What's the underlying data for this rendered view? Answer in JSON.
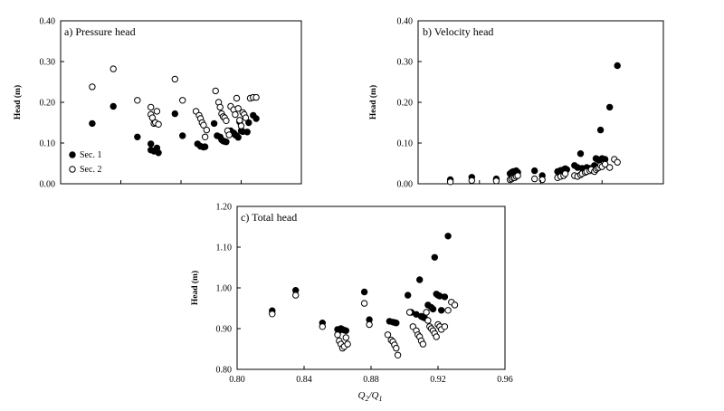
{
  "chart_data": [
    {
      "type": "scatter",
      "title": "a) Pressure head",
      "ylabel": "Head (m)",
      "xlabel": "",
      "xlim": [
        0.8,
        0.96
      ],
      "ylim": [
        0.0,
        0.4
      ],
      "yticks": [
        "0.00",
        "0.10",
        "0.20",
        "0.30",
        "0.40"
      ],
      "xticks": [],
      "legend_position": "lower-left",
      "series": [
        {
          "name": "Sec. 1",
          "marker": "filled",
          "points": [
            [
              0.821,
              0.148
            ],
            [
              0.835,
              0.19
            ],
            [
              0.851,
              0.115
            ],
            [
              0.86,
              0.098
            ],
            [
              0.86,
              0.083
            ],
            [
              0.862,
              0.08
            ],
            [
              0.863,
              0.082
            ],
            [
              0.864,
              0.088
            ],
            [
              0.865,
              0.076
            ],
            [
              0.876,
              0.172
            ],
            [
              0.881,
              0.118
            ],
            [
              0.891,
              0.098
            ],
            [
              0.893,
              0.092
            ],
            [
              0.895,
              0.09
            ],
            [
              0.896,
              0.091
            ],
            [
              0.902,
              0.148
            ],
            [
              0.904,
              0.118
            ],
            [
              0.906,
              0.115
            ],
            [
              0.907,
              0.108
            ],
            [
              0.908,
              0.105
            ],
            [
              0.909,
              0.104
            ],
            [
              0.91,
              0.103
            ],
            [
              0.913,
              0.13
            ],
            [
              0.915,
              0.125
            ],
            [
              0.916,
              0.12
            ],
            [
              0.917,
              0.118
            ],
            [
              0.918,
              0.114
            ],
            [
              0.919,
              0.152
            ],
            [
              0.92,
              0.13
            ],
            [
              0.921,
              0.128
            ],
            [
              0.924,
              0.127
            ],
            [
              0.925,
              0.15
            ],
            [
              0.928,
              0.168
            ],
            [
              0.93,
              0.16
            ]
          ]
        },
        {
          "name": "Sec. 2",
          "marker": "open",
          "points": [
            [
              0.821,
              0.238
            ],
            [
              0.835,
              0.282
            ],
            [
              0.851,
              0.205
            ],
            [
              0.86,
              0.188
            ],
            [
              0.86,
              0.17
            ],
            [
              0.861,
              0.162
            ],
            [
              0.862,
              0.148
            ],
            [
              0.863,
              0.15
            ],
            [
              0.864,
              0.178
            ],
            [
              0.865,
              0.146
            ],
            [
              0.876,
              0.257
            ],
            [
              0.881,
              0.205
            ],
            [
              0.89,
              0.178
            ],
            [
              0.892,
              0.168
            ],
            [
              0.893,
              0.16
            ],
            [
              0.894,
              0.15
            ],
            [
              0.895,
              0.144
            ],
            [
              0.896,
              0.115
            ],
            [
              0.897,
              0.132
            ],
            [
              0.903,
              0.228
            ],
            [
              0.905,
              0.2
            ],
            [
              0.906,
              0.188
            ],
            [
              0.907,
              0.172
            ],
            [
              0.908,
              0.165
            ],
            [
              0.909,
              0.162
            ],
            [
              0.91,
              0.155
            ],
            [
              0.911,
              0.13
            ],
            [
              0.912,
              0.12
            ],
            [
              0.913,
              0.19
            ],
            [
              0.915,
              0.182
            ],
            [
              0.916,
              0.17
            ],
            [
              0.917,
              0.21
            ],
            [
              0.918,
              0.185
            ],
            [
              0.919,
              0.156
            ],
            [
              0.92,
              0.142
            ],
            [
              0.921,
              0.175
            ],
            [
              0.922,
              0.17
            ],
            [
              0.923,
              0.162
            ],
            [
              0.926,
              0.21
            ],
            [
              0.928,
              0.212
            ],
            [
              0.93,
              0.212
            ]
          ]
        }
      ]
    },
    {
      "type": "scatter",
      "title": "b) Velocity head",
      "ylabel": "Head (m)",
      "xlabel": "",
      "xlim": [
        0.8,
        0.96
      ],
      "ylim": [
        0.0,
        0.4
      ],
      "yticks": [
        "0.00",
        "0.10",
        "0.20",
        "0.30",
        "0.40"
      ],
      "xticks": [],
      "series": [
        {
          "name": "Sec. 1",
          "marker": "filled",
          "points": [
            [
              0.821,
              0.01
            ],
            [
              0.835,
              0.016
            ],
            [
              0.851,
              0.012
            ],
            [
              0.86,
              0.025
            ],
            [
              0.861,
              0.028
            ],
            [
              0.862,
              0.03
            ],
            [
              0.863,
              0.03
            ],
            [
              0.864,
              0.032
            ],
            [
              0.865,
              0.028
            ],
            [
              0.876,
              0.032
            ],
            [
              0.881,
              0.02
            ],
            [
              0.891,
              0.03
            ],
            [
              0.893,
              0.033
            ],
            [
              0.895,
              0.035
            ],
            [
              0.896,
              0.037
            ],
            [
              0.897,
              0.035
            ],
            [
              0.902,
              0.045
            ],
            [
              0.904,
              0.04
            ],
            [
              0.906,
              0.074
            ],
            [
              0.907,
              0.038
            ],
            [
              0.909,
              0.036
            ],
            [
              0.91,
              0.04
            ],
            [
              0.912,
              0.038
            ],
            [
              0.913,
              0.036
            ],
            [
              0.915,
              0.045
            ],
            [
              0.916,
              0.062
            ],
            [
              0.917,
              0.06
            ],
            [
              0.918,
              0.058
            ],
            [
              0.919,
              0.132
            ],
            [
              0.92,
              0.062
            ],
            [
              0.922,
              0.06
            ],
            [
              0.925,
              0.188
            ],
            [
              0.93,
              0.29
            ]
          ]
        },
        {
          "name": "Sec. 2",
          "marker": "open",
          "points": [
            [
              0.821,
              0.005
            ],
            [
              0.835,
              0.008
            ],
            [
              0.851,
              0.007
            ],
            [
              0.86,
              0.01
            ],
            [
              0.861,
              0.012
            ],
            [
              0.862,
              0.015
            ],
            [
              0.863,
              0.015
            ],
            [
              0.864,
              0.018
            ],
            [
              0.865,
              0.02
            ],
            [
              0.876,
              0.012
            ],
            [
              0.881,
              0.01
            ],
            [
              0.891,
              0.015
            ],
            [
              0.893,
              0.018
            ],
            [
              0.895,
              0.02
            ],
            [
              0.896,
              0.025
            ],
            [
              0.902,
              0.02
            ],
            [
              0.904,
              0.018
            ],
            [
              0.906,
              0.022
            ],
            [
              0.907,
              0.025
            ],
            [
              0.909,
              0.028
            ],
            [
              0.91,
              0.03
            ],
            [
              0.912,
              0.032
            ],
            [
              0.913,
              0.035
            ],
            [
              0.915,
              0.03
            ],
            [
              0.916,
              0.035
            ],
            [
              0.917,
              0.038
            ],
            [
              0.918,
              0.04
            ],
            [
              0.919,
              0.045
            ],
            [
              0.92,
              0.042
            ],
            [
              0.922,
              0.048
            ],
            [
              0.925,
              0.04
            ],
            [
              0.928,
              0.06
            ],
            [
              0.93,
              0.053
            ]
          ]
        }
      ]
    },
    {
      "type": "scatter",
      "title": "c) Total head",
      "ylabel": "Head (m)",
      "xlabel": "Q2/Q1",
      "xlabel_main": "Q",
      "xlabel_sub1": "2",
      "xlabel_sep": "/",
      "xlabel_main2": "Q",
      "xlabel_sub2": "1",
      "xlim": [
        0.8,
        0.96
      ],
      "ylim": [
        0.8,
        1.2
      ],
      "yticks": [
        "0.80",
        "0.90",
        "1.00",
        "1.10",
        "1.20"
      ],
      "xticks": [
        "0.80",
        "0.84",
        "0.88",
        "0.92",
        "0.96"
      ],
      "series": [
        {
          "name": "Sec. 1",
          "marker": "filled",
          "points": [
            [
              0.821,
              0.944
            ],
            [
              0.835,
              0.994
            ],
            [
              0.851,
              0.914
            ],
            [
              0.86,
              0.898
            ],
            [
              0.861,
              0.895
            ],
            [
              0.862,
              0.9
            ],
            [
              0.863,
              0.898
            ],
            [
              0.864,
              0.896
            ],
            [
              0.865,
              0.895
            ],
            [
              0.876,
              0.99
            ],
            [
              0.879,
              0.922
            ],
            [
              0.891,
              0.918
            ],
            [
              0.893,
              0.916
            ],
            [
              0.894,
              0.915
            ],
            [
              0.895,
              0.914
            ],
            [
              0.902,
              0.982
            ],
            [
              0.904,
              0.94
            ],
            [
              0.907,
              0.935
            ],
            [
              0.909,
              1.02
            ],
            [
              0.91,
              0.93
            ],
            [
              0.911,
              0.928
            ],
            [
              0.912,
              0.926
            ],
            [
              0.914,
              0.958
            ],
            [
              0.916,
              0.952
            ],
            [
              0.917,
              0.948
            ],
            [
              0.918,
              1.075
            ],
            [
              0.919,
              0.985
            ],
            [
              0.92,
              0.982
            ],
            [
              0.921,
              0.98
            ],
            [
              0.922,
              0.945
            ],
            [
              0.924,
              0.978
            ],
            [
              0.926,
              1.127
            ]
          ]
        },
        {
          "name": "Sec. 2",
          "marker": "open",
          "points": [
            [
              0.821,
              0.936
            ],
            [
              0.835,
              0.982
            ],
            [
              0.851,
              0.905
            ],
            [
              0.86,
              0.885
            ],
            [
              0.861,
              0.87
            ],
            [
              0.862,
              0.862
            ],
            [
              0.863,
              0.852
            ],
            [
              0.864,
              0.856
            ],
            [
              0.865,
              0.878
            ],
            [
              0.866,
              0.862
            ],
            [
              0.876,
              0.962
            ],
            [
              0.879,
              0.91
            ],
            [
              0.89,
              0.885
            ],
            [
              0.892,
              0.872
            ],
            [
              0.893,
              0.868
            ],
            [
              0.894,
              0.86
            ],
            [
              0.895,
              0.852
            ],
            [
              0.896,
              0.835
            ],
            [
              0.903,
              0.94
            ],
            [
              0.905,
              0.905
            ],
            [
              0.907,
              0.895
            ],
            [
              0.908,
              0.885
            ],
            [
              0.909,
              0.88
            ],
            [
              0.91,
              0.87
            ],
            [
              0.911,
              0.862
            ],
            [
              0.913,
              0.94
            ],
            [
              0.914,
              0.92
            ],
            [
              0.915,
              0.905
            ],
            [
              0.916,
              0.9
            ],
            [
              0.917,
              0.895
            ],
            [
              0.918,
              0.888
            ],
            [
              0.919,
              0.88
            ],
            [
              0.92,
              0.91
            ],
            [
              0.921,
              0.905
            ],
            [
              0.922,
              0.898
            ],
            [
              0.924,
              0.905
            ],
            [
              0.926,
              0.945
            ],
            [
              0.928,
              0.965
            ],
            [
              0.93,
              0.958
            ]
          ]
        }
      ]
    }
  ]
}
